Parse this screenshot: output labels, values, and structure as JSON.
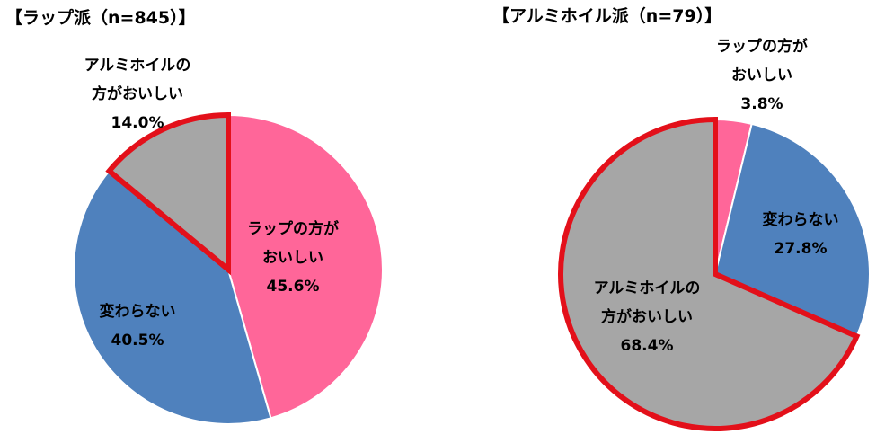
{
  "chart_data": [
    {
      "type": "pie",
      "title": "【ラップ派（n=845）】",
      "slices": [
        {
          "name": "ラップの方が|おいしい",
          "value": 45.6,
          "label": "45.6%",
          "color": "#FF6699"
        },
        {
          "name": "変わらない",
          "value": 40.5,
          "label": "40.5%",
          "color": "#4F81BD"
        },
        {
          "name": "アルミホイルの|方がおいしい",
          "value": 14.0,
          "label": "14.0%",
          "color": "#A6A6A6",
          "highlight": true
        }
      ],
      "highlight_color": "#E3101A"
    },
    {
      "type": "pie",
      "title": "【アルミホイル派（n=79）】",
      "slices": [
        {
          "name": "ラップの方が|おいしい",
          "value": 3.8,
          "label": "3.8%",
          "color": "#FF6699"
        },
        {
          "name": "変わらない",
          "value": 27.8,
          "label": "27.8%",
          "color": "#4F81BD"
        },
        {
          "name": "アルミホイルの|方がおいしい",
          "value": 68.4,
          "label": "68.4%",
          "color": "#A6A6A6",
          "highlight": true
        }
      ],
      "highlight_color": "#E3101A"
    }
  ]
}
